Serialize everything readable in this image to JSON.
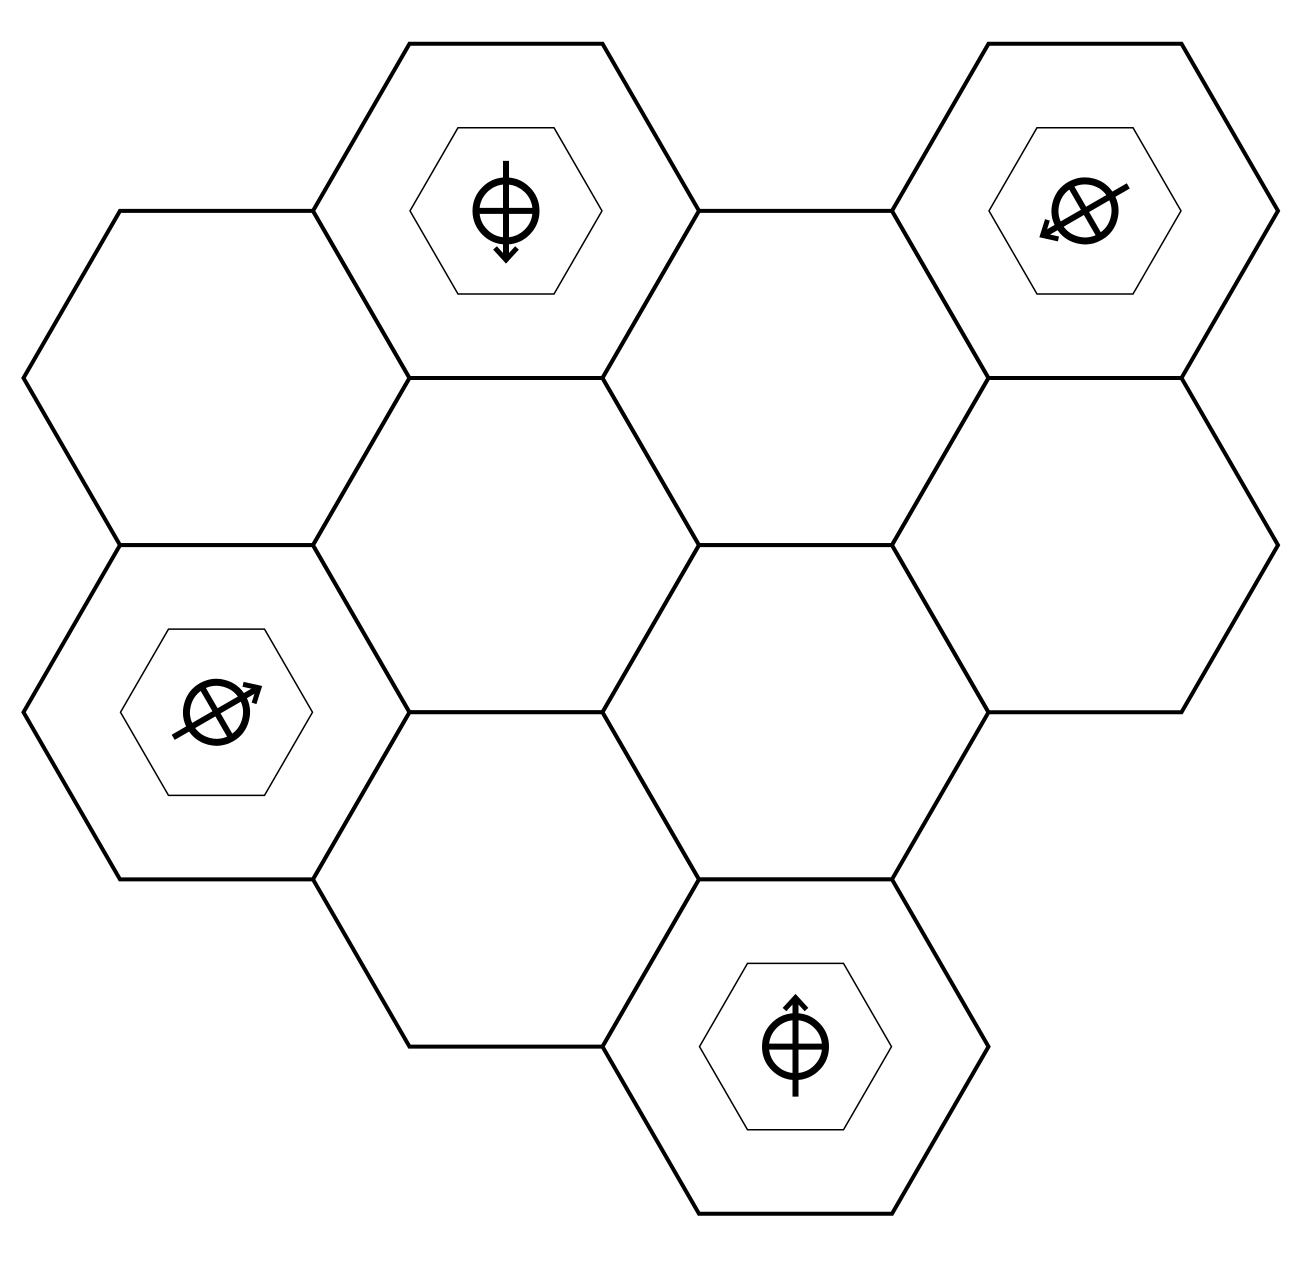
{
  "board": {
    "type": "hex-grid",
    "cells": [
      {
        "col": 0,
        "row": 0,
        "piece": null
      },
      {
        "col": 0,
        "row": 1,
        "piece": "left-piece"
      },
      {
        "col": 1,
        "row": 0,
        "piece": "top-piece"
      },
      {
        "col": 1,
        "row": 1,
        "piece": null
      },
      {
        "col": 1,
        "row": 2,
        "piece": null
      },
      {
        "col": 2,
        "row": 0,
        "piece": null
      },
      {
        "col": 2,
        "row": 1,
        "piece": null
      },
      {
        "col": 2,
        "row": 2,
        "piece": "bottom-piece"
      },
      {
        "col": 3,
        "row": 0,
        "piece": "right-piece"
      },
      {
        "col": 3,
        "row": 1,
        "piece": null
      }
    ]
  },
  "pieces": [
    {
      "id": "top-piece",
      "icon": "circled-cross-arrow-down-icon",
      "direction_deg": 270
    },
    {
      "id": "right-piece",
      "icon": "circled-cross-arrow-down-left-icon",
      "direction_deg": 210
    },
    {
      "id": "left-piece",
      "icon": "circled-cross-arrow-up-right-icon",
      "direction_deg": 30
    },
    {
      "id": "bottom-piece",
      "icon": "circled-cross-arrow-up-icon",
      "direction_deg": 90
    }
  ],
  "colors": {
    "background": "#ffffff",
    "line": "#000000"
  }
}
